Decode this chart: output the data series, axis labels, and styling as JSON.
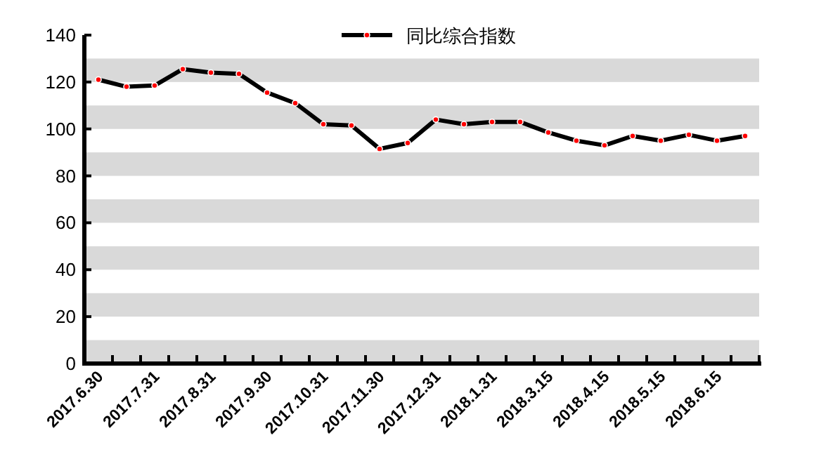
{
  "chart_data": {
    "type": "line",
    "categories": [
      "2017.6.30",
      null,
      "2017.7.31",
      null,
      "2017.8.31",
      null,
      "2017.9.30",
      null,
      "2017.10.31",
      null,
      "2017.11.30",
      null,
      "2017.12.31",
      null,
      "2018.1.31",
      null,
      "2018.3.15",
      null,
      "2018.4.15",
      null,
      "2018.5.15",
      null,
      "2018.6.15",
      null
    ],
    "series": [
      {
        "name": "同比综合指数",
        "color": "#000000",
        "values": [
          121,
          118,
          118.5,
          125.5,
          124,
          123.5,
          115.5,
          111,
          102,
          101.5,
          91.5,
          94,
          104,
          102,
          103,
          103,
          98.5,
          95,
          93,
          97,
          95,
          97.5,
          95,
          97
        ]
      }
    ],
    "ylim": [
      0,
      140
    ],
    "yticks": [
      0,
      20,
      40,
      60,
      80,
      100,
      120,
      140
    ],
    "bands": [
      {
        "axis": "y",
        "from": 0,
        "to": 10,
        "color": "#d9d9d9"
      },
      {
        "axis": "y",
        "from": 20,
        "to": 30,
        "color": "#d9d9d9"
      },
      {
        "axis": "y",
        "from": 40,
        "to": 50,
        "color": "#d9d9d9"
      },
      {
        "axis": "y",
        "from": 60,
        "to": 70,
        "color": "#d9d9d9"
      },
      {
        "axis": "y",
        "from": 80,
        "to": 90,
        "color": "#d9d9d9"
      },
      {
        "axis": "y",
        "from": 100,
        "to": 110,
        "color": "#d9d9d9"
      },
      {
        "axis": "y",
        "from": 120,
        "to": 130,
        "color": "#d9d9d9"
      }
    ],
    "marker": "circle",
    "legend": "top",
    "grid": false
  }
}
